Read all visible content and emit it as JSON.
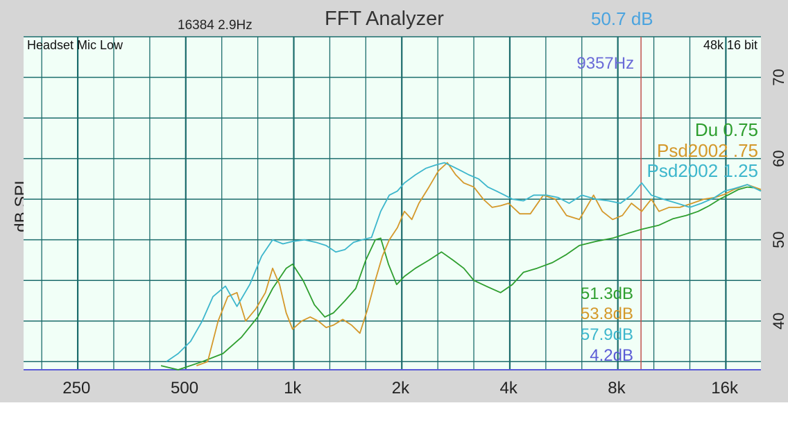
{
  "header": {
    "title": "FFT Analyzer",
    "fft_info": "16384  2.9Hz",
    "level": "50.7 dB"
  },
  "plot": {
    "input_label": "Headset Mic Low",
    "format_label": "48k 16 bit",
    "cursor_label": "9357Hz",
    "cursor_color": "#c0504d",
    "background_color": "#f1fff7",
    "grid_color": "#1a6b6b"
  },
  "chart_data": {
    "type": "line",
    "title": "FFT Analyzer",
    "xlabel": "",
    "ylabel": "dB SPL",
    "x_scale": "log",
    "xlim": [
      178,
      20200
    ],
    "ylim": [
      34,
      75
    ],
    "x_ticks": [
      {
        "value": 250,
        "label": "250"
      },
      {
        "value": 500,
        "label": "500"
      },
      {
        "value": 1000,
        "label": "1k"
      },
      {
        "value": 2000,
        "label": "2k"
      },
      {
        "value": 4000,
        "label": "4k"
      },
      {
        "value": 8000,
        "label": "8k"
      },
      {
        "value": 16000,
        "label": "16k"
      }
    ],
    "y_ticks": [
      {
        "value": 40,
        "label": "40"
      },
      {
        "value": 50,
        "label": "50"
      },
      {
        "value": 60,
        "label": "60"
      },
      {
        "value": 70,
        "label": "70"
      }
    ],
    "grid": true,
    "legend_position": "right",
    "cursor_hz": 9357,
    "series": [
      {
        "name": "Du 0.75",
        "color": "#2e9e2e",
        "readout": "51.3dB",
        "points": [
          [
            430,
            34.5
          ],
          [
            480,
            34.0
          ],
          [
            560,
            35
          ],
          [
            640,
            36
          ],
          [
            720,
            38
          ],
          [
            800,
            40.5
          ],
          [
            880,
            44
          ],
          [
            960,
            46.5
          ],
          [
            1000,
            47
          ],
          [
            1070,
            45
          ],
          [
            1150,
            42
          ],
          [
            1230,
            40.5
          ],
          [
            1300,
            41
          ],
          [
            1400,
            42.5
          ],
          [
            1500,
            44
          ],
          [
            1600,
            47.5
          ],
          [
            1700,
            50
          ],
          [
            1760,
            50.2
          ],
          [
            1850,
            47
          ],
          [
            1950,
            44.5
          ],
          [
            2050,
            45.5
          ],
          [
            2200,
            46.5
          ],
          [
            2400,
            47.5
          ],
          [
            2600,
            48.5
          ],
          [
            2800,
            47.5
          ],
          [
            3000,
            46.5
          ],
          [
            3200,
            45
          ],
          [
            3500,
            44.2
          ],
          [
            3800,
            43.5
          ],
          [
            4100,
            44.5
          ],
          [
            4400,
            46
          ],
          [
            4800,
            46.5
          ],
          [
            5300,
            47.2
          ],
          [
            5800,
            48.2
          ],
          [
            6300,
            49.3
          ],
          [
            7000,
            49.8
          ],
          [
            7800,
            50.2
          ],
          [
            8600,
            50.8
          ],
          [
            9400,
            51.3
          ],
          [
            10500,
            51.8
          ],
          [
            11500,
            52.6
          ],
          [
            12500,
            53
          ],
          [
            13500,
            53.5
          ],
          [
            14500,
            54.2
          ],
          [
            15500,
            55
          ],
          [
            16500,
            55.6
          ],
          [
            17500,
            56.2
          ],
          [
            18500,
            56.5
          ],
          [
            19500,
            56.4
          ],
          [
            20200,
            56
          ]
        ]
      },
      {
        "name": "Psd2002 .75",
        "color": "#d4982a",
        "readout": "53.8dB",
        "points": [
          [
            540,
            34.5
          ],
          [
            580,
            35
          ],
          [
            620,
            40
          ],
          [
            660,
            43
          ],
          [
            700,
            43.5
          ],
          [
            740,
            40
          ],
          [
            790,
            41.5
          ],
          [
            840,
            43.5
          ],
          [
            880,
            46.5
          ],
          [
            920,
            44.5
          ],
          [
            960,
            41
          ],
          [
            1000,
            39
          ],
          [
            1060,
            40
          ],
          [
            1120,
            40.5
          ],
          [
            1180,
            40
          ],
          [
            1240,
            39.2
          ],
          [
            1300,
            39.5
          ],
          [
            1380,
            40.2
          ],
          [
            1460,
            39.5
          ],
          [
            1540,
            38.5
          ],
          [
            1620,
            41.5
          ],
          [
            1700,
            45
          ],
          [
            1780,
            48
          ],
          [
            1860,
            50
          ],
          [
            1960,
            51.5
          ],
          [
            2050,
            53.5
          ],
          [
            2150,
            52.5
          ],
          [
            2250,
            54.5
          ],
          [
            2400,
            56.5
          ],
          [
            2550,
            58.5
          ],
          [
            2700,
            59.5
          ],
          [
            2850,
            58
          ],
          [
            3000,
            57
          ],
          [
            3200,
            56.5
          ],
          [
            3400,
            55
          ],
          [
            3600,
            54
          ],
          [
            3800,
            54.2
          ],
          [
            4000,
            54.5
          ],
          [
            4300,
            53.2
          ],
          [
            4600,
            53.2
          ],
          [
            5000,
            55.5
          ],
          [
            5400,
            55
          ],
          [
            5800,
            53
          ],
          [
            6300,
            52.5
          ],
          [
            6900,
            55.5
          ],
          [
            7300,
            53.5
          ],
          [
            7800,
            52.5
          ],
          [
            8300,
            53
          ],
          [
            8800,
            54.5
          ],
          [
            9400,
            53.5
          ],
          [
            10000,
            55
          ],
          [
            10500,
            53.5
          ],
          [
            11200,
            54
          ],
          [
            12000,
            54
          ],
          [
            13000,
            54.5
          ],
          [
            14000,
            55
          ],
          [
            15000,
            55.2
          ],
          [
            16000,
            55.6
          ],
          [
            17000,
            56.2
          ],
          [
            18500,
            56.8
          ],
          [
            20200,
            56.2
          ]
        ]
      },
      {
        "name": "Psd2002 1.25",
        "color": "#3cb6cc",
        "readout": "57.9dB",
        "points": [
          [
            445,
            35
          ],
          [
            480,
            36
          ],
          [
            520,
            37.5
          ],
          [
            560,
            40
          ],
          [
            600,
            43
          ],
          [
            650,
            44.3
          ],
          [
            700,
            41.8
          ],
          [
            760,
            44.5
          ],
          [
            820,
            48
          ],
          [
            880,
            50
          ],
          [
            940,
            49.5
          ],
          [
            1000,
            49.8
          ],
          [
            1080,
            50
          ],
          [
            1160,
            49.7
          ],
          [
            1240,
            49.3
          ],
          [
            1320,
            48.5
          ],
          [
            1400,
            48.8
          ],
          [
            1480,
            49.7
          ],
          [
            1560,
            50
          ],
          [
            1660,
            50.3
          ],
          [
            1760,
            53.5
          ],
          [
            1860,
            55.5
          ],
          [
            1960,
            56
          ],
          [
            2050,
            57
          ],
          [
            2200,
            58
          ],
          [
            2350,
            58.8
          ],
          [
            2500,
            59.2
          ],
          [
            2650,
            59.5
          ],
          [
            2800,
            59
          ],
          [
            2950,
            58.5
          ],
          [
            3100,
            58
          ],
          [
            3300,
            57.5
          ],
          [
            3500,
            56.5
          ],
          [
            3700,
            56
          ],
          [
            3900,
            55.5
          ],
          [
            4100,
            55
          ],
          [
            4400,
            54.8
          ],
          [
            4700,
            55.5
          ],
          [
            5100,
            55.5
          ],
          [
            5500,
            55.2
          ],
          [
            5900,
            54.5
          ],
          [
            6400,
            55.5
          ],
          [
            7000,
            55
          ],
          [
            7600,
            54.8
          ],
          [
            8200,
            54.5
          ],
          [
            8800,
            55.5
          ],
          [
            9400,
            57
          ],
          [
            10000,
            55.5
          ],
          [
            10800,
            55
          ],
          [
            11800,
            54.5
          ],
          [
            12800,
            54
          ],
          [
            13800,
            54.5
          ],
          [
            15000,
            55.2
          ],
          [
            16000,
            56
          ],
          [
            17000,
            56.3
          ],
          [
            18500,
            56.8
          ],
          [
            20200,
            56
          ]
        ]
      }
    ],
    "annotations": [
      {
        "text": "4.2dB",
        "color": "#5b5bd6"
      }
    ]
  }
}
